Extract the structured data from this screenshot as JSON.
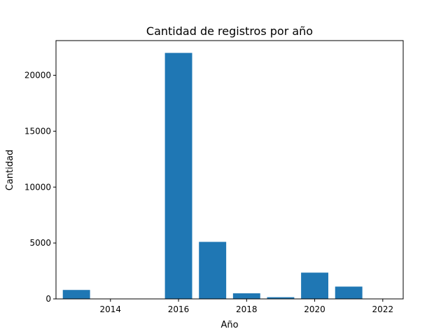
{
  "chart_data": {
    "type": "bar",
    "title": "Cantidad de registros por año",
    "xlabel": "Año",
    "ylabel": "Cantidad",
    "x": [
      2013,
      2016,
      2017,
      2018,
      2019,
      2020,
      2021
    ],
    "values": [
      800,
      22000,
      5100,
      500,
      150,
      2350,
      1100
    ],
    "xlim": [
      2012.4,
      2022.6
    ],
    "ylim": [
      0,
      23100
    ],
    "xticks": [
      2014,
      2016,
      2018,
      2020,
      2022
    ],
    "xtick_labels": [
      "2014",
      "2016",
      "2018",
      "2020",
      "2022"
    ],
    "yticks": [
      0,
      5000,
      10000,
      15000,
      20000
    ],
    "ytick_labels": [
      "0",
      "5000",
      "10000",
      "15000",
      "20000"
    ],
    "bar_width_years": 0.8,
    "bar_color": "#1f77b4",
    "grid": false
  }
}
